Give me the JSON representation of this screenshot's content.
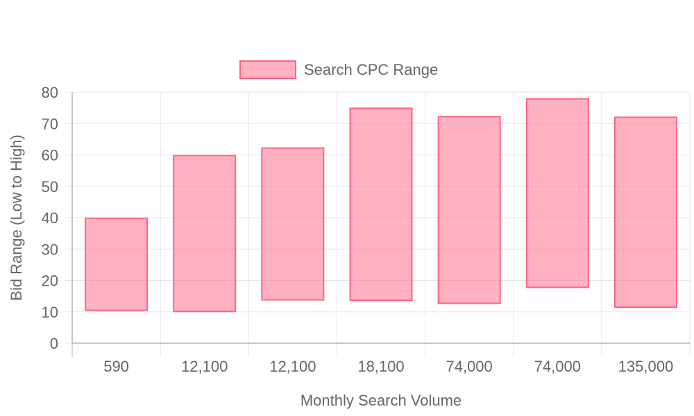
{
  "chart_data": {
    "type": "bar",
    "subtype": "floating-range",
    "title": "",
    "xlabel": "Monthly Search Volume",
    "ylabel": "Bid Range (Low to High)",
    "categories": [
      "590",
      "12,100",
      "12,100",
      "18,100",
      "74,000",
      "74,000",
      "135,000"
    ],
    "series": [
      {
        "name": "Search CPC Range",
        "ranges": [
          [
            10.5,
            39.8
          ],
          [
            10.1,
            59.8
          ],
          [
            13.8,
            62.2
          ],
          [
            13.7,
            74.9
          ],
          [
            12.7,
            72.2
          ],
          [
            17.8,
            77.9
          ],
          [
            11.5,
            72.0
          ]
        ]
      }
    ],
    "ylim": [
      0,
      80
    ],
    "yticks": [
      0,
      10,
      20,
      30,
      40,
      50,
      60,
      70,
      80
    ],
    "grid": true,
    "legend_position": "top",
    "colors": {
      "bar_fill": "rgba(255,99,132,0.5)",
      "bar_stroke": "#ff6384",
      "grid": "#e6e6e6",
      "axis": "#b3b3b3",
      "text": "#666666"
    }
  }
}
